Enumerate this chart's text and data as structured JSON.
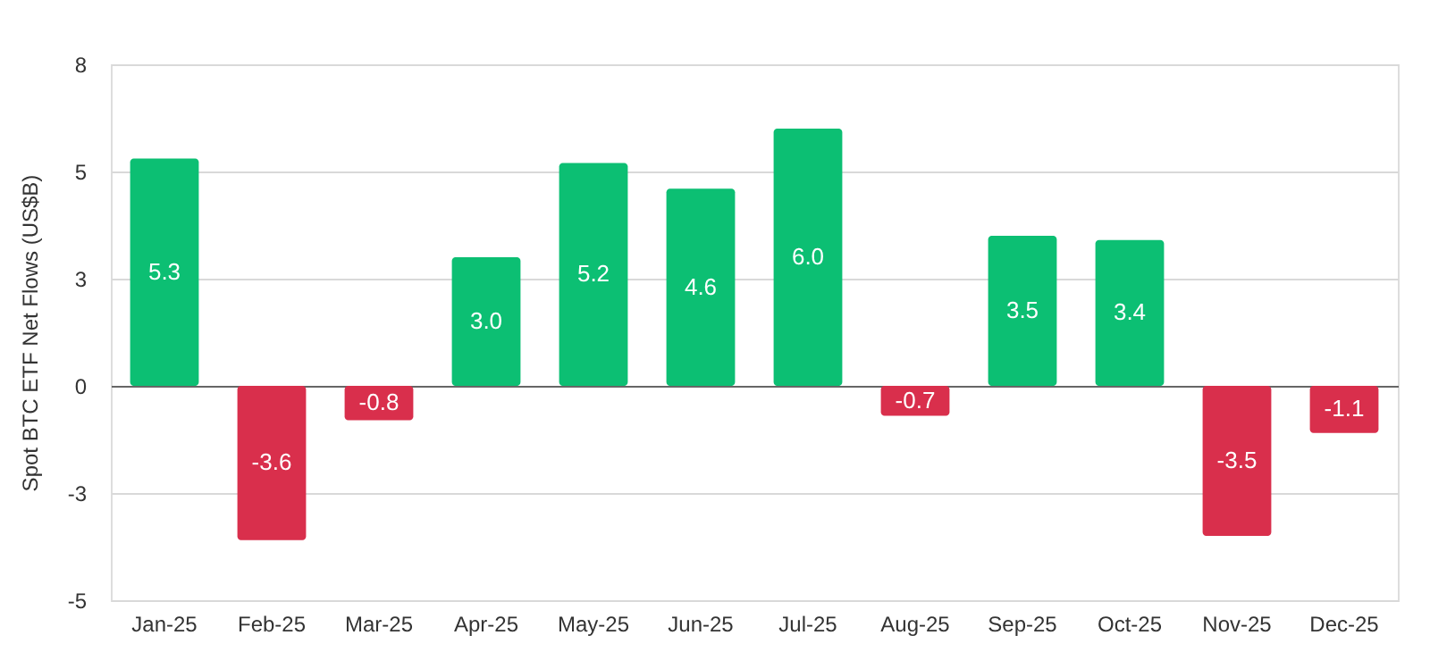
{
  "chart_data": {
    "type": "bar",
    "ylabel": "Spot BTC ETF Net Flows (US$B)",
    "categories": [
      "Jan-25",
      "Feb-25",
      "Mar-25",
      "Apr-25",
      "May-25",
      "Jun-25",
      "Jul-25",
      "Aug-25",
      "Sep-25",
      "Oct-25",
      "Nov-25",
      "Dec-25"
    ],
    "values": [
      5.3,
      -3.6,
      -0.8,
      3.0,
      5.2,
      4.6,
      6.0,
      -0.7,
      3.5,
      3.4,
      -3.5,
      -1.1
    ],
    "colors": [
      "#0cbf73",
      "#d92f4c",
      "#d92f4c",
      "#0cbf73",
      "#0cbf73",
      "#0cbf73",
      "#0cbf73",
      "#d92f4c",
      "#0cbf73",
      "#0cbf73",
      "#d92f4c",
      "#d92f4c"
    ],
    "ylim": [
      -5,
      7.5
    ],
    "yticks": [
      {
        "value": -5,
        "label": "-5"
      },
      {
        "value": -2.5,
        "label": "-3"
      },
      {
        "value": 0,
        "label": "0"
      },
      {
        "value": 2.5,
        "label": "3"
      },
      {
        "value": 5,
        "label": "5"
      },
      {
        "value": 7.5,
        "label": "8"
      }
    ],
    "value_labels": [
      "5.3",
      "-3.6",
      "-0.8",
      "3.0",
      "5.2",
      "4.6",
      "6.0",
      "-0.7",
      "3.5",
      "3.4",
      "-3.5",
      "-1.1"
    ],
    "grid": "y"
  }
}
